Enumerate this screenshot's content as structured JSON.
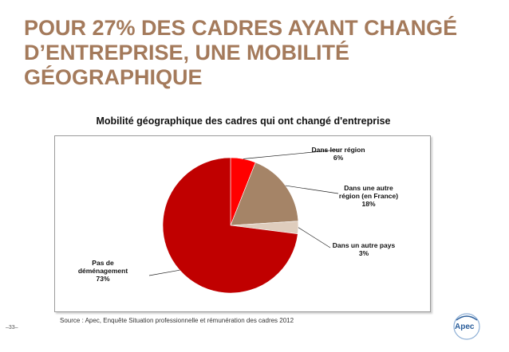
{
  "slide": {
    "title": "POUR 27% DES CADRES AYANT CHANGÉ D’ENTREPRISE, UNE MOBILITÉ GÉOGRAPHIQUE",
    "source": "Source : Apec, Enquête Situation professionnelle et rémunération des cadres 2012",
    "page_number": "–33–",
    "logo_text": "Apec",
    "colors": {
      "title": "#a47a5b",
      "accent_red": "#c00000"
    }
  },
  "chart_data": {
    "type": "pie",
    "title": "Mobilité géographique des cadres qui ont changé d'entreprise",
    "slices": [
      {
        "label_lines": [
          "Dans leur région",
          "6%"
        ],
        "value": 6,
        "color": "#ff0000"
      },
      {
        "label_lines": [
          "Dans une autre",
          "région (en France)",
          "18%"
        ],
        "value": 18,
        "color": "#a58467"
      },
      {
        "label_lines": [
          "Dans un autre pays",
          "3%"
        ],
        "value": 3,
        "color": "#dfcdbd"
      },
      {
        "label_lines": [
          "Pas de",
          "déménagement",
          "73%"
        ],
        "value": 73,
        "color": "#c00000"
      }
    ],
    "legend": "none"
  }
}
